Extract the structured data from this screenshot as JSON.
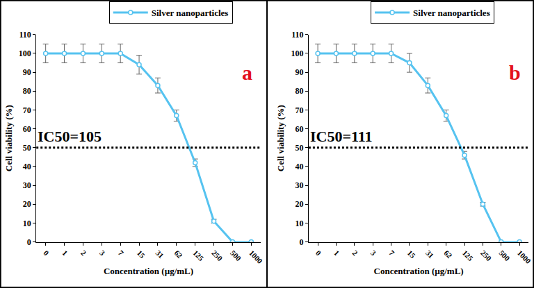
{
  "chart_data": [
    {
      "type": "line",
      "panel_label": "a",
      "annotations": [
        "IC50=105"
      ],
      "x_label": "Concentration (µg/mL)",
      "y_label": "Cell viability (%)",
      "categories": [
        "0",
        "1",
        "2",
        "3",
        "7",
        "15",
        "31",
        "62",
        "125",
        "250",
        "500",
        "1000"
      ],
      "series": [
        {
          "name": "Silver nanoparticles",
          "color": "#56c3f0",
          "marker": "circle",
          "line_style": "solid",
          "values": [
            100,
            100,
            100,
            100,
            100,
            94,
            83,
            67,
            42,
            11,
            0,
            0
          ],
          "errors": [
            5,
            5,
            5,
            5,
            5,
            5,
            4,
            3,
            2,
            1,
            0,
            0
          ]
        }
      ],
      "reference_line": 50,
      "ylim": [
        0,
        110
      ],
      "yticks": [
        0,
        10,
        20,
        30,
        40,
        50,
        60,
        70,
        80,
        90,
        100,
        110
      ],
      "grid": false
    },
    {
      "type": "line",
      "panel_label": "b",
      "annotations": [
        "IC50=111"
      ],
      "x_label": "Concentration (µg/mL)",
      "y_label": "Cell viability (%)",
      "categories": [
        "0",
        "1",
        "2",
        "3",
        "7",
        "15",
        "31",
        "62",
        "125",
        "250",
        "500",
        "1000"
      ],
      "series": [
        {
          "name": "Silver nanoparticles",
          "color": "#56c3f0",
          "marker": "circle",
          "line_style": "solid",
          "values": [
            100,
            100,
            100,
            100,
            100,
            95,
            83,
            67,
            46,
            20,
            0,
            0
          ],
          "errors": [
            5,
            5,
            5,
            5,
            5,
            5,
            4,
            3,
            2,
            1,
            0,
            0
          ]
        }
      ],
      "reference_line": 50,
      "ylim": [
        0,
        110
      ],
      "yticks": [
        0,
        10,
        20,
        30,
        40,
        50,
        60,
        70,
        80,
        90,
        100,
        110
      ],
      "grid": false
    }
  ]
}
